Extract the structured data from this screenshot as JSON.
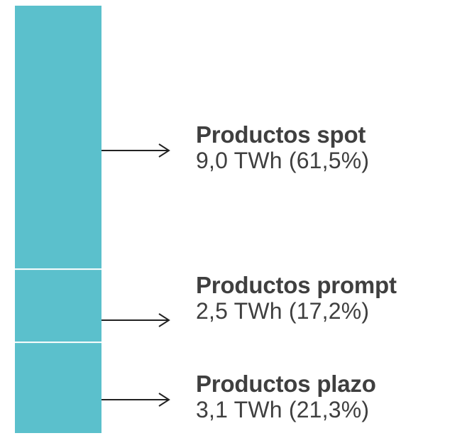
{
  "chart_data": {
    "type": "bar",
    "stacked": true,
    "orientation": "vertical",
    "unit": "TWh",
    "color": "#5bc0cc",
    "separator_color": "#ffffff",
    "text_color": "#3f3f3f",
    "segments": [
      {
        "name": "Productos spot",
        "value": 9.0,
        "share": 61.5,
        "value_text": "9,0 TWh (61,5%)"
      },
      {
        "name": "Productos prompt",
        "value": 2.5,
        "share": 17.2,
        "value_text": "2,5 TWh (17,2%)"
      },
      {
        "name": "Productos plazo",
        "value": 3.1,
        "share": 21.3,
        "value_text": "3,1 TWh (21,3%)"
      }
    ],
    "arrow_icon": "arrow-right-icon"
  }
}
